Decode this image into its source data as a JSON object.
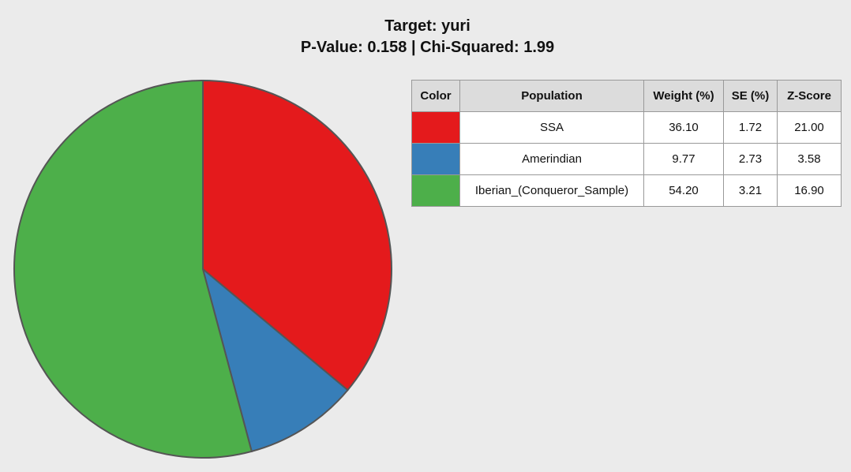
{
  "chart_data": {
    "type": "pie",
    "title": "Target: yuri",
    "subtitle": "P-Value: 0.158 | Chi-Squared: 1.99",
    "categories": [
      "SSA",
      "Amerindian",
      "Iberian_(Conqueror_Sample)"
    ],
    "values": [
      36.1,
      9.77,
      54.2
    ],
    "value_labels": [
      "36.10",
      "9.77",
      "54.20"
    ],
    "colors": [
      "#e41a1c",
      "#377eb8",
      "#4daf4a"
    ]
  },
  "table": {
    "columns": [
      "Color",
      "Population",
      "Weight (%)",
      "SE (%)",
      "Z-Score"
    ],
    "rows": [
      [
        "1.72",
        "21.00"
      ],
      [
        "2.73",
        "3.58"
      ],
      [
        "3.21",
        "16.90"
      ]
    ]
  }
}
